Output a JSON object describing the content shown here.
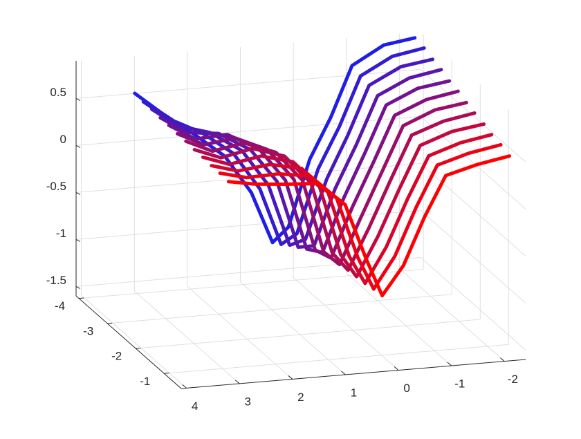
{
  "chart_data": {
    "type": "line3d",
    "x": [
      3.1,
      2.6,
      2.0,
      1.4,
      0.9,
      0.5,
      0.2,
      -0.2,
      -0.6,
      -1.0,
      -1.6,
      -2.2
    ],
    "xlim": [
      -2.4,
      4.1
    ],
    "ylim": [
      -4.1,
      -0.4
    ],
    "zlim": [
      -1.6,
      0.9
    ],
    "xticks": [
      -2,
      -1,
      0,
      1,
      2,
      3,
      4
    ],
    "yticks": [
      -4,
      -3,
      -2,
      -1
    ],
    "zticks": [
      -1.5,
      -1,
      -0.5,
      0,
      0.5
    ],
    "grid": true,
    "series": [
      {
        "y": -3.9,
        "color": "#1e1ee6",
        "values": [
          0.56,
          0.33,
          0.08,
          -0.19,
          -0.6,
          -1.15,
          -1.0,
          -0.3,
          0.13,
          0.66,
          0.85,
          0.9
        ]
      },
      {
        "y": -3.6,
        "color": "#321bd1",
        "values": [
          0.55,
          0.34,
          0.17,
          -0.08,
          -0.48,
          -1.09,
          -0.99,
          -0.32,
          0.11,
          0.63,
          0.81,
          0.87
        ]
      },
      {
        "y": -3.3,
        "color": "#4719bc",
        "values": [
          0.55,
          0.35,
          0.25,
          0.03,
          -0.36,
          -1.02,
          -0.97,
          -0.35,
          0.1,
          0.61,
          0.78,
          0.83
        ]
      },
      {
        "y": -3.0,
        "color": "#5b16a7",
        "values": [
          0.54,
          0.36,
          0.32,
          0.12,
          -0.24,
          -0.96,
          -0.96,
          -0.37,
          0.08,
          0.58,
          0.74,
          0.8
        ]
      },
      {
        "y": -2.7,
        "color": "#701392",
        "values": [
          0.54,
          0.37,
          0.39,
          0.21,
          -0.15,
          -0.9,
          -0.95,
          -0.39,
          0.07,
          0.56,
          0.71,
          0.76
        ]
      },
      {
        "y": -2.4,
        "color": "#84107d",
        "values": [
          0.53,
          0.39,
          0.43,
          0.28,
          -0.06,
          -0.83,
          -0.93,
          -0.41,
          0.05,
          0.53,
          0.67,
          0.73
        ]
      },
      {
        "y": -2.1,
        "color": "#990e69",
        "values": [
          0.53,
          0.4,
          0.46,
          0.33,
          0.01,
          -0.77,
          -0.92,
          -0.44,
          0.03,
          0.5,
          0.64,
          0.69
        ]
      },
      {
        "y": -1.8,
        "color": "#ad0b54",
        "values": [
          0.52,
          0.41,
          0.48,
          0.37,
          0.06,
          -0.7,
          -0.9,
          -0.46,
          0.02,
          0.48,
          0.6,
          0.66
        ]
      },
      {
        "y": -1.5,
        "color": "#c2083f",
        "values": [
          0.52,
          0.42,
          0.48,
          0.39,
          0.1,
          -0.64,
          -0.89,
          -0.48,
          0.0,
          0.45,
          0.57,
          0.62
        ]
      },
      {
        "y": -1.2,
        "color": "#d6052a",
        "values": [
          0.51,
          0.43,
          0.47,
          0.4,
          0.12,
          -0.58,
          -0.88,
          -0.51,
          -0.02,
          0.42,
          0.53,
          0.59
        ]
      },
      {
        "y": -0.9,
        "color": "#eb0315",
        "values": [
          0.51,
          0.44,
          0.45,
          0.4,
          0.14,
          -0.51,
          -0.86,
          -0.53,
          -0.03,
          0.4,
          0.5,
          0.56
        ]
      },
      {
        "y": -0.6,
        "color": "#ff0000",
        "values": [
          0.5,
          0.45,
          0.42,
          0.4,
          0.15,
          -0.45,
          -0.85,
          -0.55,
          -0.05,
          0.37,
          0.46,
          0.52
        ]
      }
    ]
  }
}
